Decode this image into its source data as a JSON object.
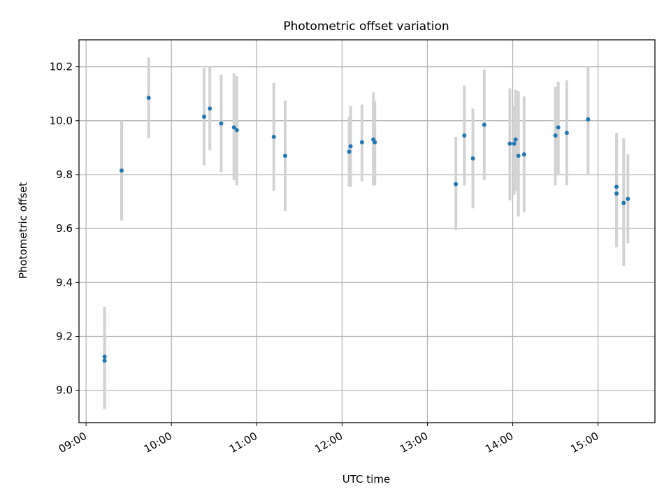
{
  "chart_data": {
    "type": "scatter",
    "title": "Photometric offset variation",
    "xlabel": "UTC time",
    "ylabel": "Photometric offset",
    "x_tick_labels": [
      "09:00",
      "10:00",
      "11:00",
      "12:00",
      "13:00",
      "14:00",
      "15:00"
    ],
    "y_tick_labels": [
      "9.0",
      "9.2",
      "9.4",
      "9.6",
      "9.8",
      "10.0",
      "10.2"
    ],
    "xlim": [
      "08:55",
      "15:40"
    ],
    "ylim": [
      8.88,
      10.3
    ],
    "grid": true,
    "colors": {
      "point": "#1f77b4",
      "errorbar": "#d3d3d3",
      "grid": "#b0b0b0"
    },
    "points": [
      {
        "t": "09:13",
        "y": 9.11,
        "ylo": 8.93,
        "yhi": 9.31
      },
      {
        "t": "09:13",
        "y": 9.125,
        "ylo": 8.94,
        "yhi": 9.3
      },
      {
        "t": "09:25",
        "y": 9.815,
        "ylo": 9.63,
        "yhi": 10.0
      },
      {
        "t": "09:44",
        "y": 10.085,
        "ylo": 9.935,
        "yhi": 10.235
      },
      {
        "t": "10:23",
        "y": 10.015,
        "ylo": 9.835,
        "yhi": 10.195
      },
      {
        "t": "10:27",
        "y": 10.045,
        "ylo": 9.89,
        "yhi": 10.2
      },
      {
        "t": "10:35",
        "y": 9.99,
        "ylo": 9.81,
        "yhi": 10.17
      },
      {
        "t": "10:44",
        "y": 9.975,
        "ylo": 9.78,
        "yhi": 10.175
      },
      {
        "t": "10:46",
        "y": 9.965,
        "ylo": 9.76,
        "yhi": 10.165
      },
      {
        "t": "11:12",
        "y": 9.94,
        "ylo": 9.74,
        "yhi": 10.14
      },
      {
        "t": "11:20",
        "y": 9.87,
        "ylo": 9.665,
        "yhi": 10.075
      },
      {
        "t": "12:05",
        "y": 9.885,
        "ylo": 9.755,
        "yhi": 10.015
      },
      {
        "t": "12:06",
        "y": 9.905,
        "ylo": 9.755,
        "yhi": 10.055
      },
      {
        "t": "12:14",
        "y": 9.92,
        "ylo": 9.775,
        "yhi": 10.06
      },
      {
        "t": "12:22",
        "y": 9.93,
        "ylo": 9.76,
        "yhi": 10.105
      },
      {
        "t": "12:23",
        "y": 9.92,
        "ylo": 9.76,
        "yhi": 10.075
      },
      {
        "t": "13:20",
        "y": 9.765,
        "ylo": 9.595,
        "yhi": 9.94
      },
      {
        "t": "13:26",
        "y": 9.945,
        "ylo": 9.76,
        "yhi": 10.13
      },
      {
        "t": "13:32",
        "y": 9.86,
        "ylo": 9.675,
        "yhi": 10.045
      },
      {
        "t": "13:40",
        "y": 9.985,
        "ylo": 9.78,
        "yhi": 10.19
      },
      {
        "t": "13:58",
        "y": 9.915,
        "ylo": 9.705,
        "yhi": 10.12
      },
      {
        "t": "14:01",
        "y": 9.915,
        "ylo": 9.725,
        "yhi": 10.055
      },
      {
        "t": "14:02",
        "y": 9.93,
        "ylo": 9.74,
        "yhi": 10.115
      },
      {
        "t": "14:04",
        "y": 9.87,
        "ylo": 9.645,
        "yhi": 10.11
      },
      {
        "t": "14:08",
        "y": 9.875,
        "ylo": 9.66,
        "yhi": 10.09
      },
      {
        "t": "14:30",
        "y": 9.945,
        "ylo": 9.76,
        "yhi": 10.125
      },
      {
        "t": "14:32",
        "y": 9.975,
        "ylo": 9.8,
        "yhi": 10.145
      },
      {
        "t": "14:38",
        "y": 9.955,
        "ylo": 9.76,
        "yhi": 10.15
      },
      {
        "t": "14:53",
        "y": 10.005,
        "ylo": 9.8,
        "yhi": 10.2
      },
      {
        "t": "15:13",
        "y": 9.755,
        "ylo": 9.555,
        "yhi": 9.955
      },
      {
        "t": "15:13",
        "y": 9.73,
        "ylo": 9.53,
        "yhi": 9.93
      },
      {
        "t": "15:18",
        "y": 9.695,
        "ylo": 9.46,
        "yhi": 9.935
      },
      {
        "t": "15:21",
        "y": 9.71,
        "ylo": 9.545,
        "yhi": 9.875
      }
    ]
  }
}
